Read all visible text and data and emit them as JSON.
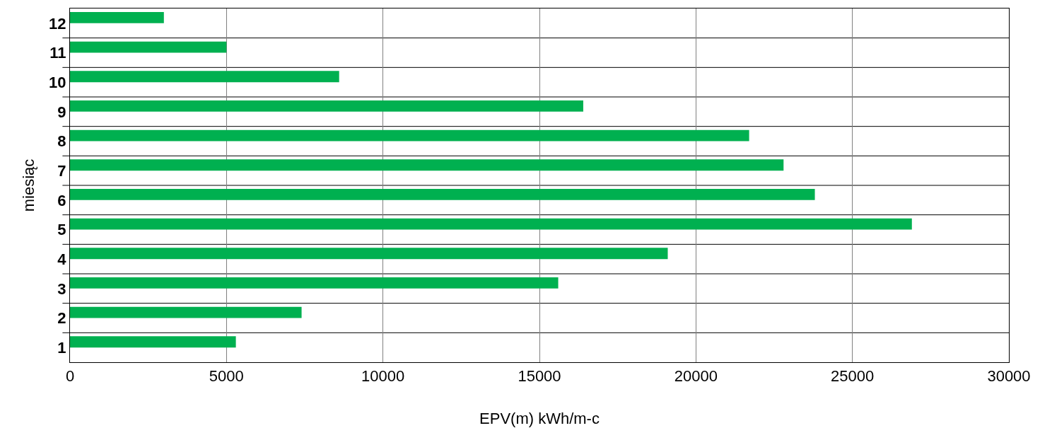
{
  "chart_data": {
    "type": "bar",
    "orientation": "horizontal",
    "xlabel": "EPV(m) kWh/m-c",
    "ylabel": "miesiąc",
    "categories": [
      "12",
      "11",
      "10",
      "9",
      "8",
      "7",
      "6",
      "5",
      "4",
      "3",
      "2",
      "1"
    ],
    "values": [
      3000,
      5000,
      8600,
      16400,
      21700,
      22800,
      23800,
      26900,
      19100,
      15600,
      7400,
      5300
    ],
    "color": "#00b050",
    "xlim": [
      0,
      30000
    ],
    "xticks": [
      0,
      5000,
      10000,
      15000,
      20000,
      25000,
      30000
    ],
    "grid": true
  }
}
